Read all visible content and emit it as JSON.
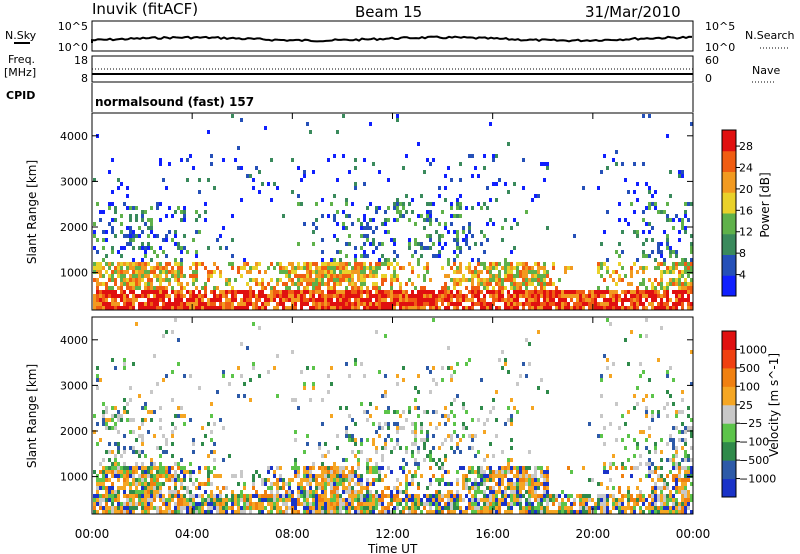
{
  "header": {
    "station": "Inuvik (fitACF)",
    "beam": "Beam 15",
    "date": "31/Mar/2010",
    "mode": "normalsound (fast) 157"
  },
  "strip_labels": {
    "nsky": "N.Sky",
    "nsky_ticks": [
      "10^5",
      "10^0"
    ],
    "nsearch": "N.Search",
    "nsearch_ticks": [
      "10^5",
      "10^0"
    ],
    "freq": "Freq.",
    "freq_unit": "[MHz]",
    "freq_ticks": [
      "18",
      "8"
    ],
    "nave": "Nave",
    "nave_ticks": [
      "60",
      "0"
    ],
    "cpid": "CPID"
  },
  "chart_data": [
    {
      "type": "heatmap",
      "panel": "power",
      "ylabel": "Slant Range [km]",
      "ylim": [
        180,
        4500
      ],
      "yticks": [
        "1000",
        "2000",
        "3000",
        "4000"
      ],
      "colorbar_label": "Power [dB]",
      "colorbar_ticks": [
        "4",
        "8",
        "12",
        "16",
        "20",
        "24",
        "28"
      ],
      "colorbar_range": [
        0,
        31
      ],
      "colors": [
        "#1020ff",
        "#2550b8",
        "#3a8a5c",
        "#5fb14a",
        "#e9d12a",
        "#f29a20",
        "#f05d12",
        "#e01010"
      ]
    },
    {
      "type": "heatmap",
      "panel": "velocity",
      "ylabel": "Slant Range [km]",
      "ylim": [
        180,
        4500
      ],
      "yticks": [
        "1000",
        "2000",
        "3000",
        "4000"
      ],
      "colorbar_label": "Velocity [m s^-1]",
      "colorbar_ticks": [
        "1000",
        "500",
        "100",
        "25",
        "−25",
        "−100",
        "−500",
        "−1000"
      ],
      "colors": [
        "#1a33c8",
        "#2d5aa8",
        "#2f8a4a",
        "#5cc44a",
        "#c8c8c8",
        "#f5a623",
        "#f08010",
        "#f04010",
        "#e01010"
      ]
    }
  ],
  "x_axis": {
    "label": "Time UT",
    "ticks": [
      "00:00",
      "04:00",
      "08:00",
      "12:00",
      "16:00",
      "20:00",
      "00:00"
    ]
  }
}
